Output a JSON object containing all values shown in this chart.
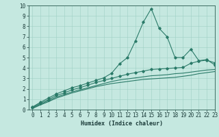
{
  "title": "",
  "xlabel": "Humidex (Indice chaleur)",
  "xlim": [
    -0.5,
    23
  ],
  "ylim": [
    0,
    10
  ],
  "xticks": [
    0,
    1,
    2,
    3,
    4,
    5,
    6,
    7,
    8,
    9,
    10,
    11,
    12,
    13,
    14,
    15,
    16,
    17,
    18,
    19,
    20,
    21,
    22,
    23
  ],
  "yticks": [
    0,
    1,
    2,
    3,
    4,
    5,
    6,
    7,
    8,
    9,
    10
  ],
  "bg_color": "#c5e8e0",
  "line_color": "#2a7a68",
  "grid_color": "#9ecfc5",
  "line1_x": [
    0,
    1,
    2,
    3,
    4,
    5,
    6,
    7,
    8,
    9,
    10,
    11,
    12,
    13,
    14,
    15,
    16,
    17,
    18,
    19,
    20,
    21,
    22,
    23
  ],
  "line1_y": [
    0.25,
    0.7,
    1.1,
    1.5,
    1.8,
    2.1,
    2.3,
    2.55,
    2.8,
    3.05,
    3.5,
    4.4,
    5.0,
    6.6,
    8.4,
    9.7,
    7.8,
    7.0,
    5.0,
    5.0,
    5.8,
    4.7,
    4.8,
    4.3
  ],
  "line2_x": [
    0,
    1,
    2,
    3,
    4,
    5,
    6,
    7,
    8,
    9,
    10,
    11,
    12,
    13,
    14,
    15,
    16,
    17,
    18,
    19,
    20,
    21,
    22,
    23
  ],
  "line2_y": [
    0.2,
    0.6,
    0.95,
    1.35,
    1.6,
    1.9,
    2.1,
    2.35,
    2.6,
    2.8,
    3.0,
    3.2,
    3.4,
    3.55,
    3.7,
    3.85,
    3.9,
    3.95,
    4.0,
    4.05,
    4.45,
    4.65,
    4.75,
    4.5
  ],
  "line3_x": [
    0,
    1,
    2,
    3,
    4,
    5,
    6,
    7,
    8,
    9,
    10,
    11,
    12,
    13,
    14,
    15,
    16,
    17,
    18,
    19,
    20,
    21,
    22,
    23
  ],
  "line3_y": [
    0.15,
    0.5,
    0.85,
    1.2,
    1.45,
    1.7,
    1.9,
    2.1,
    2.3,
    2.5,
    2.7,
    2.85,
    2.95,
    3.05,
    3.15,
    3.25,
    3.3,
    3.35,
    3.45,
    3.5,
    3.6,
    3.7,
    3.8,
    3.85
  ],
  "line4_x": [
    0,
    1,
    2,
    3,
    4,
    5,
    6,
    7,
    8,
    9,
    10,
    11,
    12,
    13,
    14,
    15,
    16,
    17,
    18,
    19,
    20,
    21,
    22,
    23
  ],
  "line4_y": [
    0.1,
    0.45,
    0.75,
    1.1,
    1.35,
    1.6,
    1.8,
    2.0,
    2.2,
    2.35,
    2.5,
    2.6,
    2.7,
    2.8,
    2.9,
    2.95,
    3.0,
    3.05,
    3.1,
    3.2,
    3.3,
    3.45,
    3.55,
    3.65
  ],
  "tick_fontsize": 5.5,
  "xlabel_fontsize": 6.0,
  "marker_size": 1.8,
  "linewidth": 0.8
}
